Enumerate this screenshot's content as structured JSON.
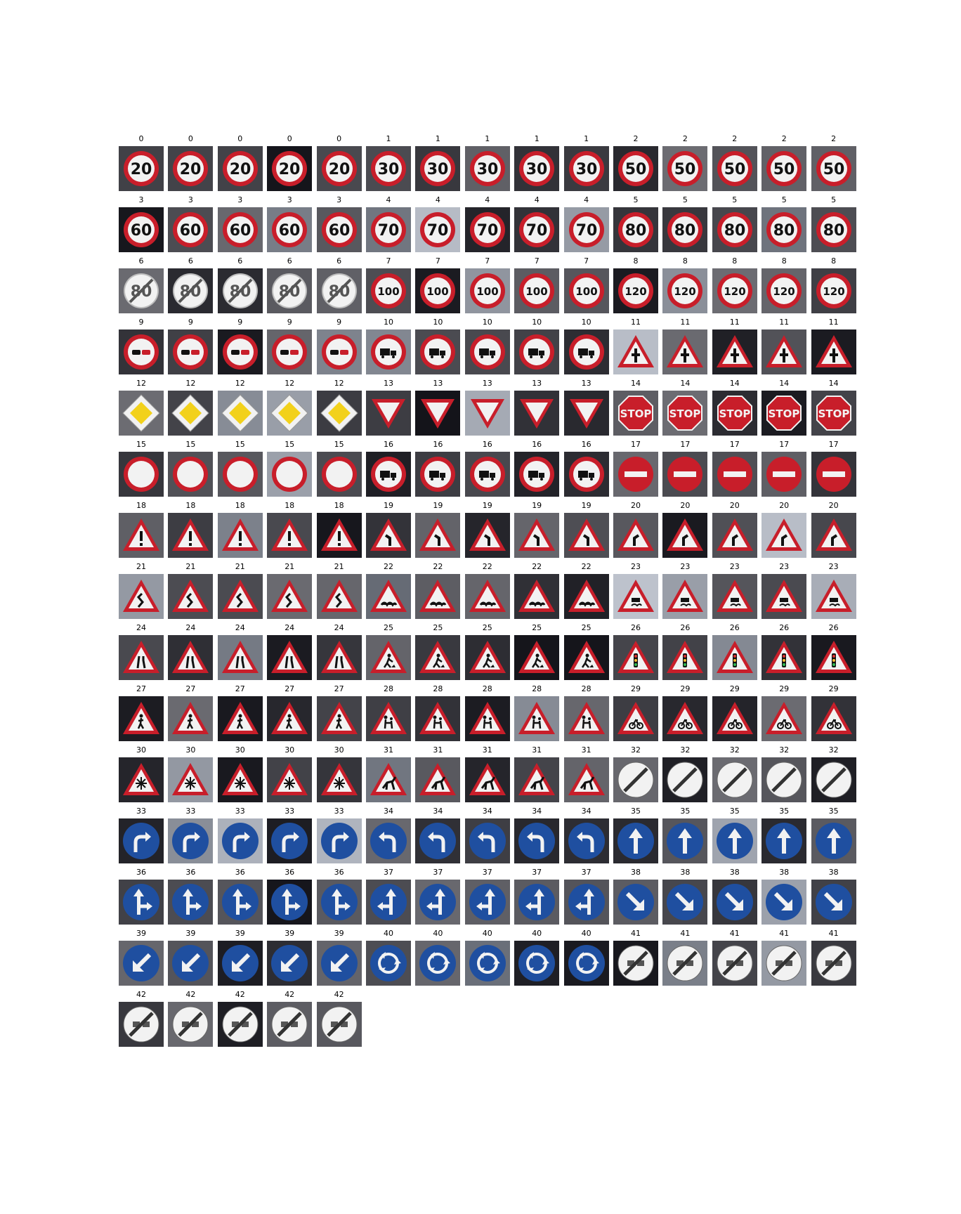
{
  "figure": {
    "columns": 15,
    "samples_per_class": 5,
    "num_classes": 43,
    "labels": [
      0,
      0,
      0,
      0,
      0,
      1,
      1,
      1,
      1,
      1,
      2,
      2,
      2,
      2,
      2,
      3,
      3,
      3,
      3,
      3,
      4,
      4,
      4,
      4,
      4,
      5,
      5,
      5,
      5,
      5,
      6,
      6,
      6,
      6,
      6,
      7,
      7,
      7,
      7,
      7,
      8,
      8,
      8,
      8,
      8,
      9,
      9,
      9,
      9,
      9,
      10,
      10,
      10,
      10,
      10,
      11,
      11,
      11,
      11,
      11,
      12,
      12,
      12,
      12,
      12,
      13,
      13,
      13,
      13,
      13,
      14,
      14,
      14,
      14,
      14,
      15,
      15,
      15,
      15,
      15,
      16,
      16,
      16,
      16,
      16,
      17,
      17,
      17,
      17,
      17,
      18,
      18,
      18,
      18,
      18,
      19,
      19,
      19,
      19,
      19,
      20,
      20,
      20,
      20,
      20,
      21,
      21,
      21,
      21,
      21,
      22,
      22,
      22,
      22,
      22,
      23,
      23,
      23,
      23,
      23,
      24,
      24,
      24,
      24,
      24,
      25,
      25,
      25,
      25,
      25,
      26,
      26,
      26,
      26,
      26,
      27,
      27,
      27,
      27,
      27,
      28,
      28,
      28,
      28,
      28,
      29,
      29,
      29,
      29,
      29,
      30,
      30,
      30,
      30,
      30,
      31,
      31,
      31,
      31,
      31,
      32,
      32,
      32,
      32,
      32,
      33,
      33,
      33,
      33,
      33,
      34,
      34,
      34,
      34,
      34,
      35,
      35,
      35,
      35,
      35,
      36,
      36,
      36,
      36,
      36,
      37,
      37,
      37,
      37,
      37,
      38,
      38,
      38,
      38,
      38,
      39,
      39,
      39,
      39,
      39,
      40,
      40,
      40,
      40,
      40,
      41,
      41,
      41,
      41,
      41,
      42,
      42,
      42,
      42,
      42
    ]
  },
  "sign_types": {
    "0": {
      "shape": "speed",
      "text": "20"
    },
    "1": {
      "shape": "speed",
      "text": "30"
    },
    "2": {
      "shape": "speed",
      "text": "50"
    },
    "3": {
      "shape": "speed",
      "text": "60"
    },
    "4": {
      "shape": "speed",
      "text": "70"
    },
    "5": {
      "shape": "speed",
      "text": "80"
    },
    "6": {
      "shape": "endspeed",
      "text": "80"
    },
    "7": {
      "shape": "speed",
      "text": "100"
    },
    "8": {
      "shape": "speed",
      "text": "120"
    },
    "9": {
      "shape": "nopass",
      "icon": "cars-icon"
    },
    "10": {
      "shape": "nopass",
      "icon": "truck-icon"
    },
    "11": {
      "shape": "warning",
      "icon": "crossroads-icon"
    },
    "12": {
      "shape": "diamond",
      "icon": "priority-road-icon"
    },
    "13": {
      "shape": "yield",
      "icon": "yield-icon"
    },
    "14": {
      "shape": "stop",
      "text": "STOP"
    },
    "15": {
      "shape": "noveh",
      "icon": "no-vehicles-icon"
    },
    "16": {
      "shape": "nopass",
      "icon": "truck-prohibited-icon"
    },
    "17": {
      "shape": "noentry",
      "icon": "no-entry-icon"
    },
    "18": {
      "shape": "warning",
      "icon": "exclamation-icon"
    },
    "19": {
      "shape": "warning",
      "icon": "curve-left-icon"
    },
    "20": {
      "shape": "warning",
      "icon": "curve-right-icon"
    },
    "21": {
      "shape": "warning",
      "icon": "double-curve-icon"
    },
    "22": {
      "shape": "warning",
      "icon": "bumpy-road-icon"
    },
    "23": {
      "shape": "warning",
      "icon": "slippery-road-icon"
    },
    "24": {
      "shape": "warning",
      "icon": "road-narrows-icon"
    },
    "25": {
      "shape": "warning",
      "icon": "road-work-icon"
    },
    "26": {
      "shape": "warning",
      "icon": "traffic-signals-icon"
    },
    "27": {
      "shape": "warning",
      "icon": "pedestrians-icon"
    },
    "28": {
      "shape": "warning",
      "icon": "children-crossing-icon"
    },
    "29": {
      "shape": "warning",
      "icon": "bicycles-crossing-icon"
    },
    "30": {
      "shape": "warning",
      "icon": "snowflake-icon"
    },
    "31": {
      "shape": "warning",
      "icon": "wild-animals-icon"
    },
    "32": {
      "shape": "endall",
      "icon": "end-restrictions-icon"
    },
    "33": {
      "shape": "blue",
      "icon": "turn-right-icon"
    },
    "34": {
      "shape": "blue",
      "icon": "turn-left-icon"
    },
    "35": {
      "shape": "blue",
      "icon": "ahead-only-icon"
    },
    "36": {
      "shape": "blue",
      "icon": "straight-or-right-icon"
    },
    "37": {
      "shape": "blue",
      "icon": "straight-or-left-icon"
    },
    "38": {
      "shape": "blue",
      "icon": "keep-right-icon"
    },
    "39": {
      "shape": "blue",
      "icon": "keep-left-icon"
    },
    "40": {
      "shape": "blue",
      "icon": "roundabout-icon"
    },
    "41": {
      "shape": "endall",
      "icon": "end-no-passing-icon"
    },
    "42": {
      "shape": "endall",
      "icon": "end-no-passing-trucks-icon"
    }
  },
  "colors": {
    "sign_red": "#c81e2a",
    "sign_blue": "#1f4fa0",
    "sign_white": "#f2f2f2",
    "sign_yellow": "#f2d11b",
    "ink": "#111111"
  }
}
